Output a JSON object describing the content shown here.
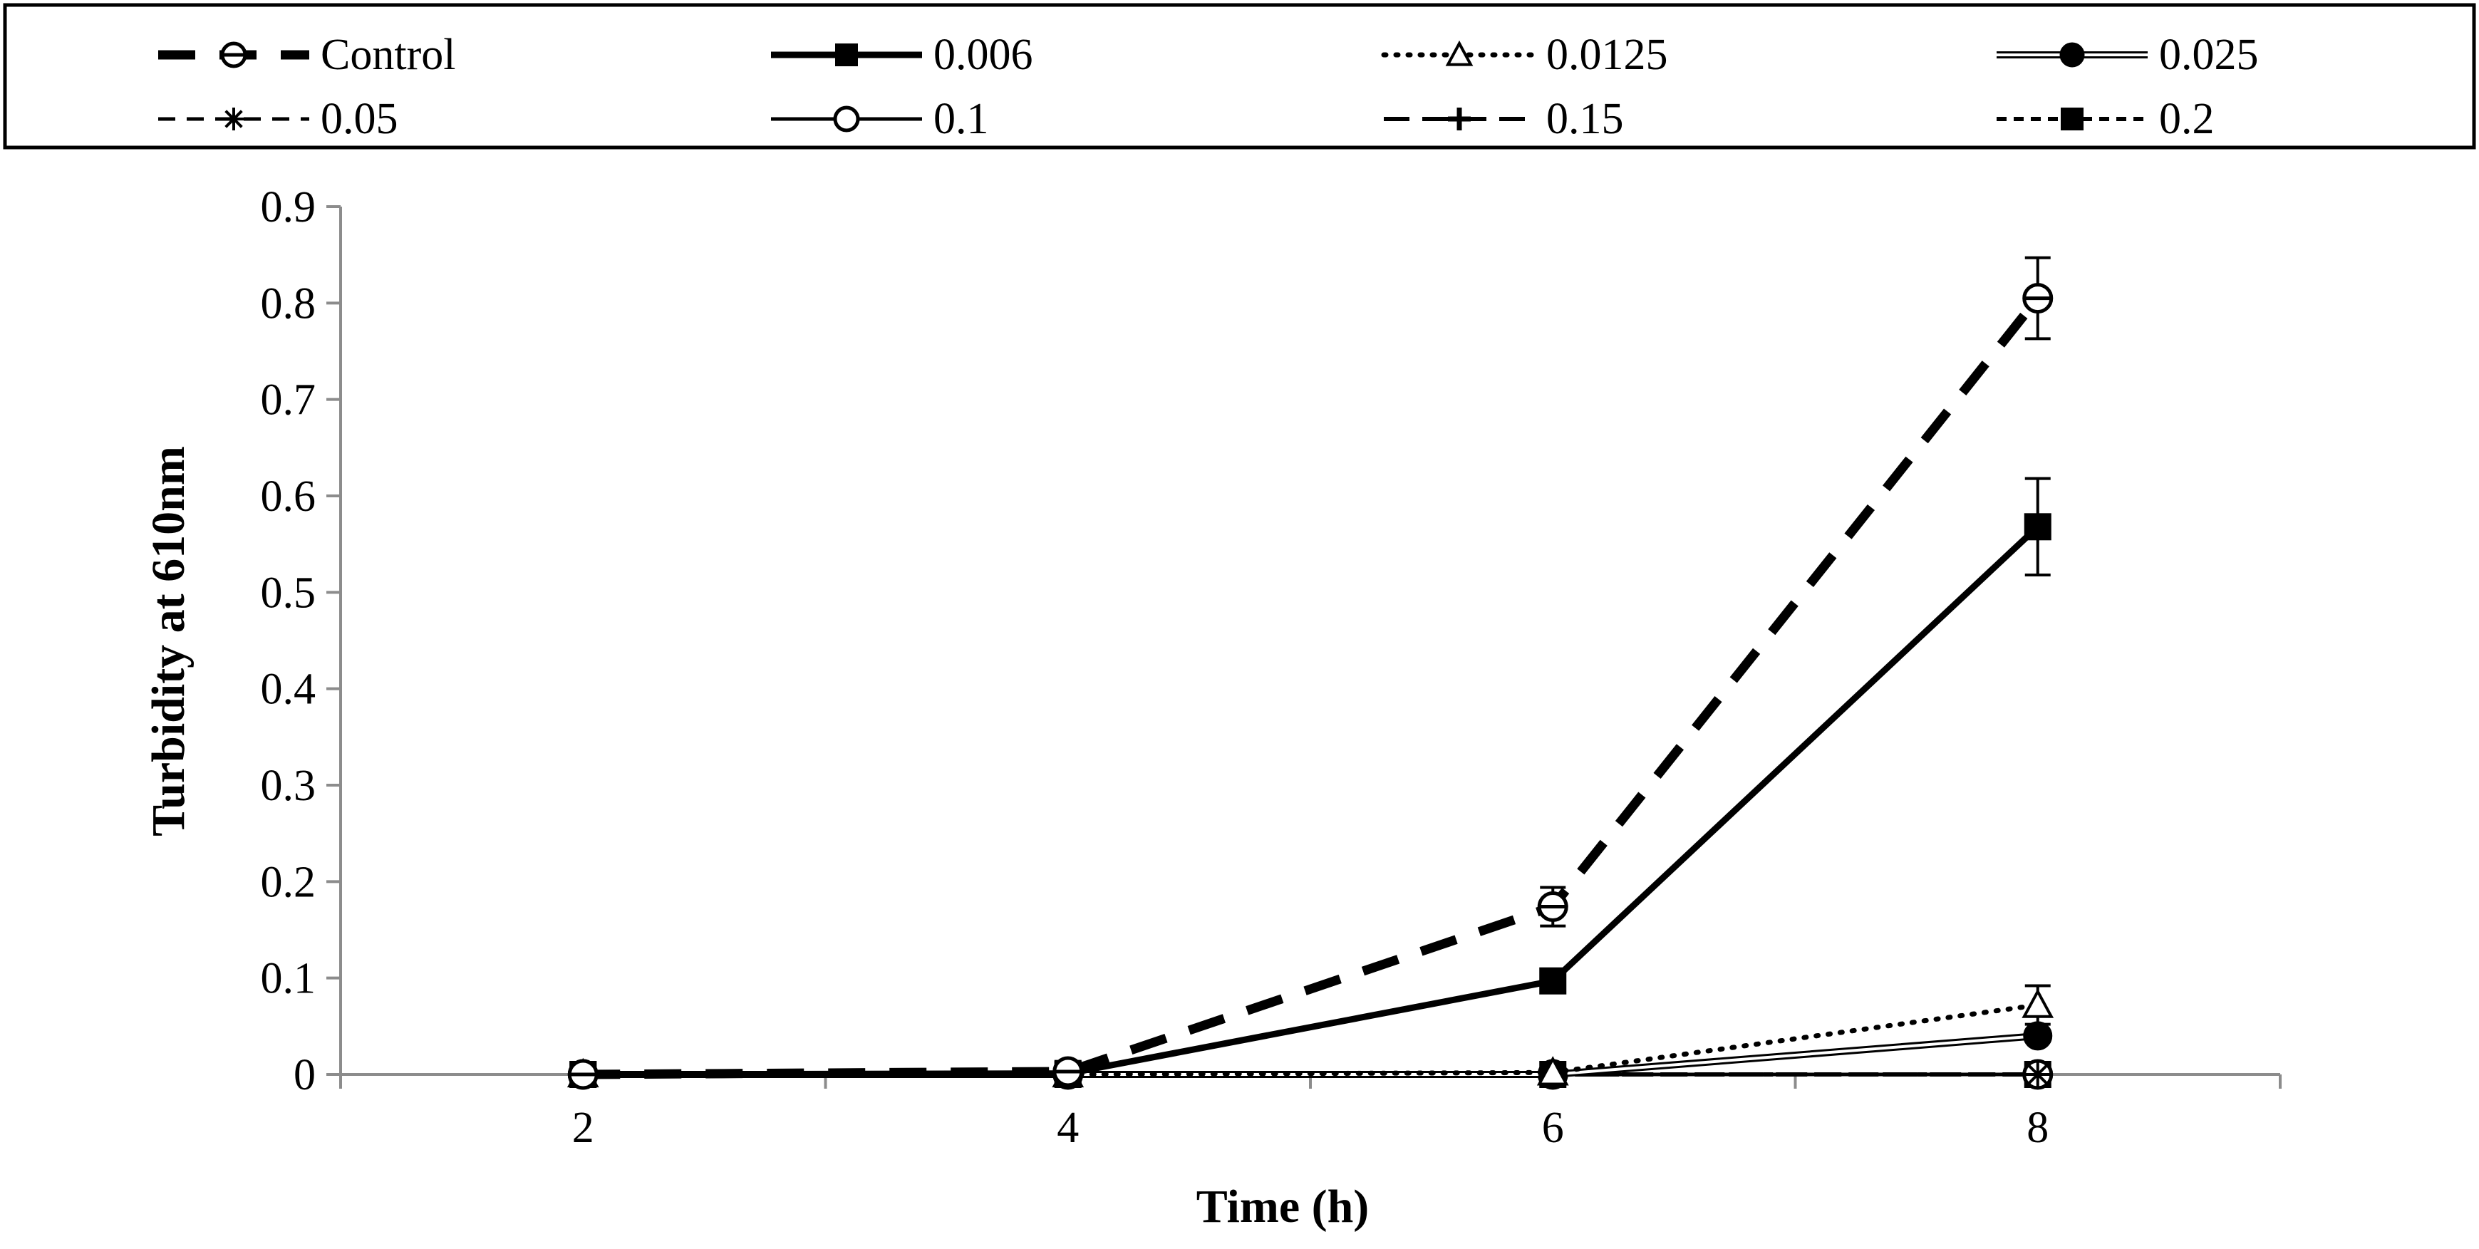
{
  "chart_data": {
    "type": "line",
    "title": "",
    "xlabel": "Time (h)",
    "ylabel": "Turbidity at 610nm",
    "x": [
      2,
      4,
      6,
      8
    ],
    "xlim": [
      1,
      9
    ],
    "xticks": [
      "2",
      "4",
      "6",
      "8"
    ],
    "ylim": [
      0,
      0.9
    ],
    "yticks": [
      "0",
      "0.1",
      "0.2",
      "0.3",
      "0.4",
      "0.5",
      "0.6",
      "0.7",
      "0.8",
      "0.9"
    ],
    "grid": false,
    "legend_position": "top",
    "series": [
      {
        "name": "Control",
        "values": [
          0,
          0.003,
          0.174,
          0.805
        ],
        "errors": [
          0,
          0,
          0.02,
          0.042
        ],
        "line": "dash-thick",
        "marker": "open-circle-bar"
      },
      {
        "name": "0.006",
        "values": [
          0,
          0.001,
          0.097,
          0.568
        ],
        "errors": [
          0,
          0,
          0.006,
          0.05
        ],
        "line": "solid-thick",
        "marker": "filled-square"
      },
      {
        "name": "0.0125",
        "values": [
          0,
          0,
          0.002,
          0.072
        ],
        "errors": [
          0,
          0,
          0,
          0.02
        ],
        "line": "dotted",
        "marker": "open-triangle"
      },
      {
        "name": "0.025",
        "values": [
          0,
          0,
          0,
          0.04
        ],
        "errors": [
          0,
          0,
          0,
          0.006
        ],
        "line": "double",
        "marker": "filled-circle"
      },
      {
        "name": "0.05",
        "values": [
          0,
          0,
          0,
          0
        ],
        "errors": [
          0,
          0,
          0,
          0
        ],
        "line": "dash",
        "marker": "asterisk"
      },
      {
        "name": "0.1",
        "values": [
          0,
          0,
          0,
          0
        ],
        "errors": [
          0,
          0,
          0,
          0
        ],
        "line": "solid",
        "marker": "open-circle"
      },
      {
        "name": "0.15",
        "values": [
          0,
          0,
          0,
          0
        ],
        "errors": [
          0,
          0,
          0,
          0
        ],
        "line": "long-dash",
        "marker": "plus"
      },
      {
        "name": "0.2",
        "values": [
          0,
          0,
          0,
          0
        ],
        "errors": [
          0,
          0,
          0,
          0
        ],
        "line": "short-dash",
        "marker": "filled-square"
      }
    ]
  }
}
